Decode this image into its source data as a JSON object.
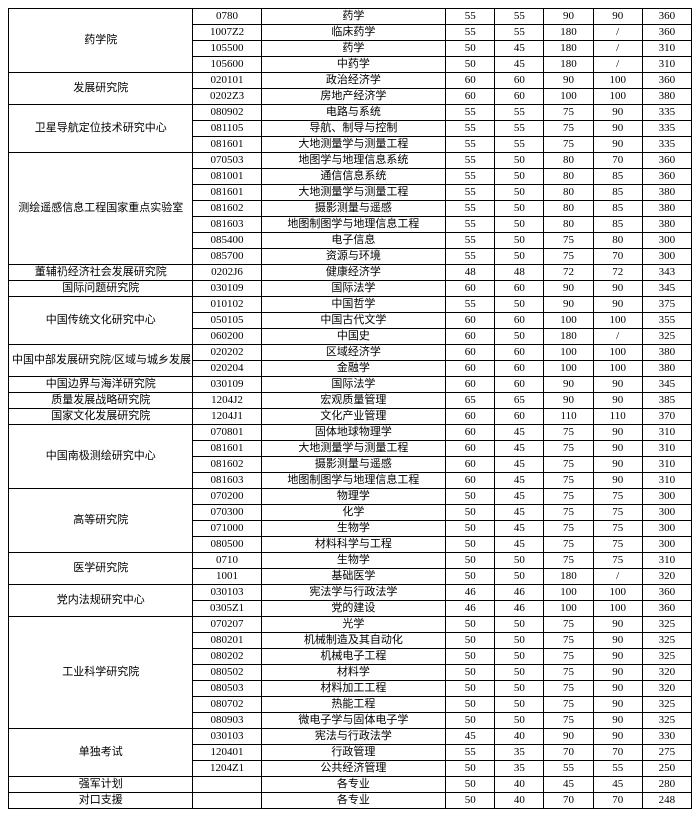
{
  "font_family": "SimSun",
  "font_size": 11,
  "border_color": "#000000",
  "background_color": "#ffffff",
  "text_color": "#000000",
  "column_widths_pct": [
    27,
    10,
    27,
    7.2,
    7.2,
    7.2,
    7.2,
    7.2
  ],
  "groups": [
    {
      "dept": "药学院",
      "rows": [
        {
          "code": "0780",
          "major": "药学",
          "s": [
            "55",
            "55",
            "90",
            "90",
            "360"
          ]
        },
        {
          "code": "1007Z2",
          "major": "临床药学",
          "s": [
            "55",
            "55",
            "180",
            "/",
            "360"
          ]
        },
        {
          "code": "105500",
          "major": "药学",
          "s": [
            "50",
            "45",
            "180",
            "/",
            "310"
          ]
        },
        {
          "code": "105600",
          "major": "中药学",
          "s": [
            "50",
            "45",
            "180",
            "/",
            "310"
          ]
        }
      ]
    },
    {
      "dept": "发展研究院",
      "rows": [
        {
          "code": "020101",
          "major": "政治经济学",
          "s": [
            "60",
            "60",
            "90",
            "100",
            "360"
          ]
        },
        {
          "code": "0202Z3",
          "major": "房地产经济学",
          "s": [
            "60",
            "60",
            "100",
            "100",
            "380"
          ]
        }
      ]
    },
    {
      "dept": "卫星导航定位技术研究中心",
      "rows": [
        {
          "code": "080902",
          "major": "电路与系统",
          "s": [
            "55",
            "55",
            "75",
            "90",
            "335"
          ]
        },
        {
          "code": "081105",
          "major": "导航、制导与控制",
          "s": [
            "55",
            "55",
            "75",
            "90",
            "335"
          ]
        },
        {
          "code": "081601",
          "major": "大地测量学与测量工程",
          "s": [
            "55",
            "55",
            "75",
            "90",
            "335"
          ]
        }
      ]
    },
    {
      "dept": "测绘遥感信息工程国家重点实验室",
      "rows": [
        {
          "code": "070503",
          "major": "地图学与地理信息系统",
          "s": [
            "55",
            "50",
            "80",
            "70",
            "360"
          ]
        },
        {
          "code": "081001",
          "major": "通信信息系统",
          "s": [
            "55",
            "50",
            "80",
            "85",
            "360"
          ]
        },
        {
          "code": "081601",
          "major": "大地测量学与测量工程",
          "s": [
            "55",
            "50",
            "80",
            "85",
            "380"
          ]
        },
        {
          "code": "081602",
          "major": "摄影测量与遥感",
          "s": [
            "55",
            "50",
            "80",
            "85",
            "380"
          ]
        },
        {
          "code": "081603",
          "major": "地图制图学与地理信息工程",
          "s": [
            "55",
            "50",
            "80",
            "85",
            "380"
          ]
        },
        {
          "code": "085400",
          "major": "电子信息",
          "s": [
            "55",
            "50",
            "75",
            "80",
            "300"
          ]
        },
        {
          "code": "085700",
          "major": "资源与环境",
          "s": [
            "55",
            "50",
            "75",
            "70",
            "300"
          ]
        }
      ]
    },
    {
      "dept": "董辅礽经济社会发展研究院",
      "rows": [
        {
          "code": "0202J6",
          "major": "健康经济学",
          "s": [
            "48",
            "48",
            "72",
            "72",
            "343"
          ]
        }
      ]
    },
    {
      "dept": "国际问题研究院",
      "rows": [
        {
          "code": "030109",
          "major": "国际法学",
          "s": [
            "60",
            "60",
            "90",
            "90",
            "345"
          ]
        }
      ]
    },
    {
      "dept": "中国传统文化研究中心",
      "rows": [
        {
          "code": "010102",
          "major": "中国哲学",
          "s": [
            "55",
            "50",
            "90",
            "90",
            "375"
          ]
        },
        {
          "code": "050105",
          "major": "中国古代文学",
          "s": [
            "60",
            "60",
            "100",
            "100",
            "355"
          ]
        },
        {
          "code": "060200",
          "major": "中国史",
          "s": [
            "60",
            "50",
            "180",
            "/",
            "325"
          ]
        }
      ]
    },
    {
      "dept": "中国中部发展研究院/区域与城乡发展",
      "rows": [
        {
          "code": "020202",
          "major": "区域经济学",
          "s": [
            "60",
            "60",
            "100",
            "100",
            "380"
          ]
        },
        {
          "code": "020204",
          "major": "金融学",
          "s": [
            "60",
            "60",
            "100",
            "100",
            "380"
          ]
        }
      ]
    },
    {
      "dept": "中国边界与海洋研究院",
      "rows": [
        {
          "code": "030109",
          "major": "国际法学",
          "s": [
            "60",
            "60",
            "90",
            "90",
            "345"
          ]
        }
      ]
    },
    {
      "dept": "质量发展战略研究院",
      "rows": [
        {
          "code": "1204J2",
          "major": "宏观质量管理",
          "s": [
            "65",
            "65",
            "90",
            "90",
            "385"
          ]
        }
      ]
    },
    {
      "dept": "国家文化发展研究院",
      "rows": [
        {
          "code": "1204J1",
          "major": "文化产业管理",
          "s": [
            "60",
            "60",
            "110",
            "110",
            "370"
          ]
        }
      ]
    },
    {
      "dept": "中国南极测绘研究中心",
      "rows": [
        {
          "code": "070801",
          "major": "固体地球物理学",
          "s": [
            "60",
            "45",
            "75",
            "90",
            "310"
          ]
        },
        {
          "code": "081601",
          "major": "大地测量学与测量工程",
          "s": [
            "60",
            "45",
            "75",
            "90",
            "310"
          ]
        },
        {
          "code": "081602",
          "major": "摄影测量与遥感",
          "s": [
            "60",
            "45",
            "75",
            "90",
            "310"
          ]
        },
        {
          "code": "081603",
          "major": "地图制图学与地理信息工程",
          "s": [
            "60",
            "45",
            "75",
            "90",
            "310"
          ]
        }
      ]
    },
    {
      "dept": "高等研究院",
      "rows": [
        {
          "code": "070200",
          "major": "物理学",
          "s": [
            "50",
            "45",
            "75",
            "75",
            "300"
          ]
        },
        {
          "code": "070300",
          "major": "化学",
          "s": [
            "50",
            "45",
            "75",
            "75",
            "300"
          ]
        },
        {
          "code": "071000",
          "major": "生物学",
          "s": [
            "50",
            "45",
            "75",
            "75",
            "300"
          ]
        },
        {
          "code": "080500",
          "major": "材料科学与工程",
          "s": [
            "50",
            "45",
            "75",
            "75",
            "300"
          ]
        }
      ]
    },
    {
      "dept": "医学研究院",
      "rows": [
        {
          "code": "0710",
          "major": "生物学",
          "s": [
            "50",
            "50",
            "75",
            "75",
            "310"
          ]
        },
        {
          "code": "1001",
          "major": "基础医学",
          "s": [
            "50",
            "50",
            "180",
            "/",
            "320"
          ]
        }
      ]
    },
    {
      "dept": "党内法规研究中心",
      "rows": [
        {
          "code": "030103",
          "major": "宪法学与行政法学",
          "s": [
            "46",
            "46",
            "100",
            "100",
            "360"
          ]
        },
        {
          "code": "0305Z1",
          "major": "党的建设",
          "s": [
            "46",
            "46",
            "100",
            "100",
            "360"
          ]
        }
      ]
    },
    {
      "dept": "工业科学研究院",
      "rows": [
        {
          "code": "070207",
          "major": "光学",
          "s": [
            "50",
            "50",
            "75",
            "90",
            "325"
          ]
        },
        {
          "code": "080201",
          "major": "机械制造及其自动化",
          "s": [
            "50",
            "50",
            "75",
            "90",
            "325"
          ]
        },
        {
          "code": "080202",
          "major": "机械电子工程",
          "s": [
            "50",
            "50",
            "75",
            "90",
            "325"
          ]
        },
        {
          "code": "080502",
          "major": "材料学",
          "s": [
            "50",
            "50",
            "75",
            "90",
            "320"
          ]
        },
        {
          "code": "080503",
          "major": "材料加工工程",
          "s": [
            "50",
            "50",
            "75",
            "90",
            "320"
          ]
        },
        {
          "code": "080702",
          "major": "热能工程",
          "s": [
            "50",
            "50",
            "75",
            "90",
            "325"
          ]
        },
        {
          "code": "080903",
          "major": "微电子学与固体电子学",
          "s": [
            "50",
            "50",
            "75",
            "90",
            "325"
          ]
        }
      ]
    },
    {
      "dept": "单独考试",
      "rows": [
        {
          "code": "030103",
          "major": "宪法与行政法学",
          "s": [
            "45",
            "40",
            "90",
            "90",
            "330"
          ]
        },
        {
          "code": "120401",
          "major": "行政管理",
          "s": [
            "55",
            "35",
            "70",
            "70",
            "275"
          ]
        },
        {
          "code": "1204Z1",
          "major": "公共经济管理",
          "s": [
            "50",
            "35",
            "55",
            "55",
            "250"
          ]
        }
      ]
    },
    {
      "dept": "强军计划",
      "rows": [
        {
          "code": "",
          "major": "各专业",
          "s": [
            "50",
            "40",
            "45",
            "45",
            "280"
          ]
        }
      ]
    },
    {
      "dept": "对口支援",
      "rows": [
        {
          "code": "",
          "major": "各专业",
          "s": [
            "50",
            "40",
            "70",
            "70",
            "248"
          ]
        }
      ]
    }
  ]
}
